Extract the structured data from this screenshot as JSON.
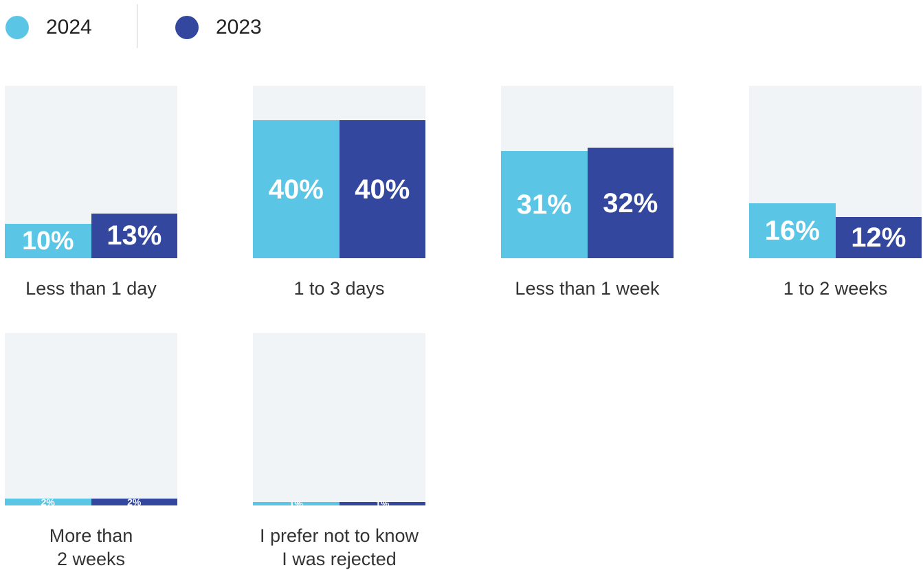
{
  "chart_data": {
    "type": "bar",
    "categories": [
      "Less than 1 day",
      "1 to 3 days",
      "Less than 1 week",
      "1 to 2 weeks",
      "More than\n2 weeks",
      "I prefer not to know\nI was rejected"
    ],
    "series": [
      {
        "name": "2024",
        "color": "#5bc5e6",
        "values": [
          10,
          40,
          31,
          16,
          2,
          1
        ],
        "value_labels": [
          "10%",
          "40%",
          "31%",
          "16%",
          "2%",
          "1%"
        ]
      },
      {
        "name": "2023",
        "color": "#33479e",
        "values": [
          13,
          40,
          32,
          12,
          2,
          1
        ],
        "value_labels": [
          "13%",
          "40%",
          "32%",
          "12%",
          "2%",
          "1%"
        ]
      }
    ],
    "ylim": [
      0,
      50
    ]
  }
}
